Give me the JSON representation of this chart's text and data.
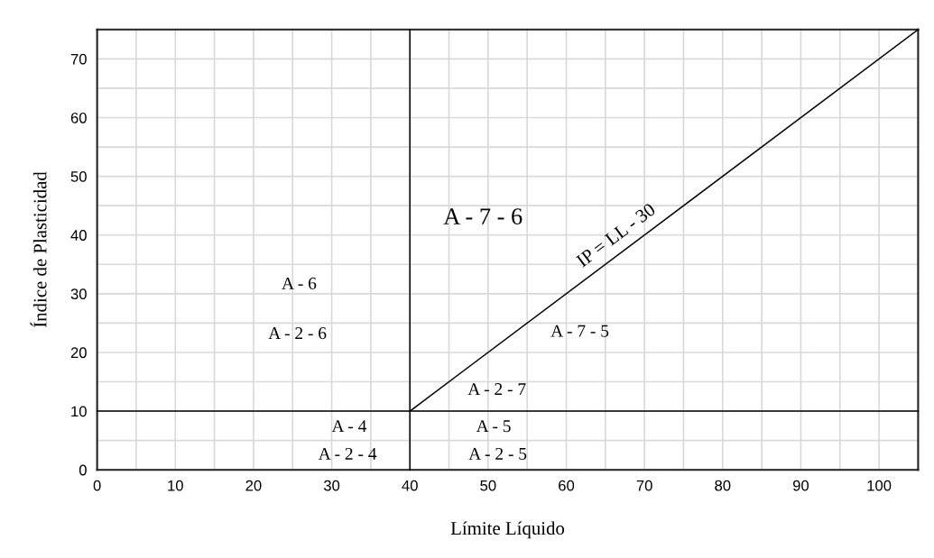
{
  "chart_data": {
    "type": "line",
    "xlabel": "Límite Líquido",
    "ylabel": "Índice de Plasticidad",
    "xlim": [
      0,
      105
    ],
    "ylim": [
      0,
      75
    ],
    "xticks": [
      0,
      10,
      20,
      30,
      40,
      50,
      60,
      70,
      80,
      90,
      100
    ],
    "yticks": [
      0,
      10,
      20,
      30,
      40,
      50,
      60,
      70
    ],
    "grid": true,
    "series": [
      {
        "name": "IP = LL - 30",
        "color": "#000000",
        "x": [
          40,
          105
        ],
        "values": [
          10,
          75
        ]
      },
      {
        "color": "#000000",
        "x": [
          40,
          40
        ],
        "values": [
          0,
          75
        ]
      },
      {
        "color": "#000000",
        "x": [
          0,
          105
        ],
        "values": [
          10,
          10
        ]
      }
    ],
    "annotations": [
      "A - 6",
      "A - 2 - 6",
      "A - 4",
      "A - 2 - 4",
      "A - 7 - 6",
      "A - 7 - 5",
      "A - 2 - 7",
      "A - 5",
      "A - 2 - 5"
    ]
  }
}
